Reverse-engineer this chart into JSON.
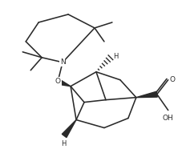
{
  "background": "#ffffff",
  "line_color": "#2a2a2a",
  "lw": 1.15,
  "figsize": [
    2.27,
    1.86
  ],
  "dpi": 100,
  "xlim": [
    0,
    227
  ],
  "ylim": [
    0,
    186
  ]
}
